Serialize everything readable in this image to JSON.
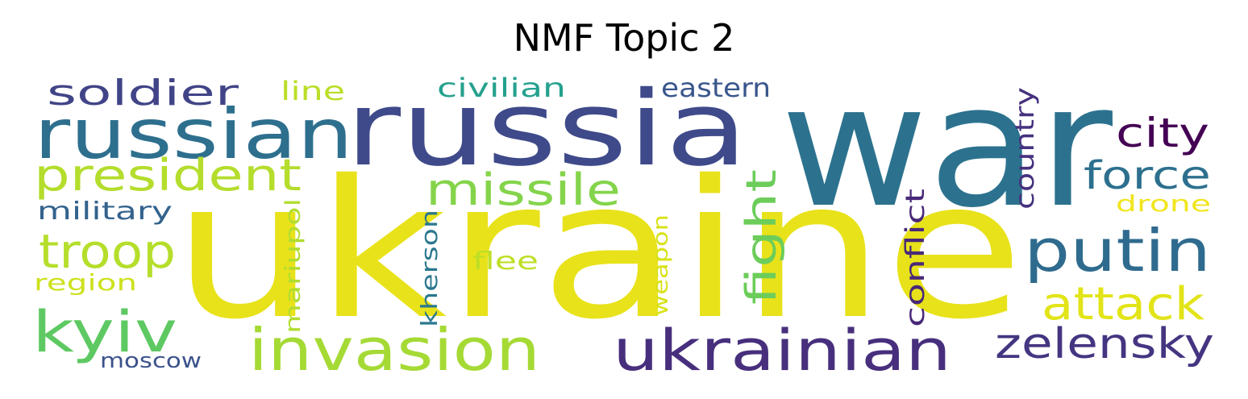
{
  "title": "NMF Topic 2",
  "word_cloud": {
    "words": [
      {
        "text": "ukraine",
        "color": "#e8e21a"
      },
      {
        "text": "war",
        "color": "#2c728e"
      },
      {
        "text": "russia",
        "color": "#3f4a8a"
      },
      {
        "text": "russian",
        "color": "#2e6f8e"
      },
      {
        "text": "invasion",
        "color": "#a5da35"
      },
      {
        "text": "ukrainian",
        "color": "#472f7d"
      },
      {
        "text": "putin",
        "color": "#2f6b8e"
      },
      {
        "text": "president",
        "color": "#b4dd2c"
      },
      {
        "text": "zelensky",
        "color": "#453581"
      },
      {
        "text": "attack",
        "color": "#e2e418"
      },
      {
        "text": "kyiv",
        "color": "#5ec962"
      },
      {
        "text": "troop",
        "color": "#b5de2b"
      },
      {
        "text": "missile",
        "color": "#84d44b"
      },
      {
        "text": "fight",
        "color": "#6ccd5a"
      },
      {
        "text": "force",
        "color": "#2d708e"
      },
      {
        "text": "soldier",
        "color": "#414487"
      },
      {
        "text": "city",
        "color": "#440154"
      },
      {
        "text": "civilian",
        "color": "#25a18e"
      },
      {
        "text": "eastern",
        "color": "#39568c"
      },
      {
        "text": "line",
        "color": "#bade28"
      },
      {
        "text": "military",
        "color": "#33638d"
      },
      {
        "text": "country",
        "color": "#46327e"
      },
      {
        "text": "conflict",
        "color": "#482878"
      },
      {
        "text": "mariupol",
        "color": "#b0dd2f"
      },
      {
        "text": "kherson",
        "color": "#2a788e"
      },
      {
        "text": "weapon",
        "color": "#d8e219"
      },
      {
        "text": "drone",
        "color": "#f1e51d"
      },
      {
        "text": "flee",
        "color": "#bddf26"
      },
      {
        "text": "region",
        "color": "#cde11d"
      },
      {
        "text": "moscow",
        "color": "#3b528b"
      }
    ]
  }
}
